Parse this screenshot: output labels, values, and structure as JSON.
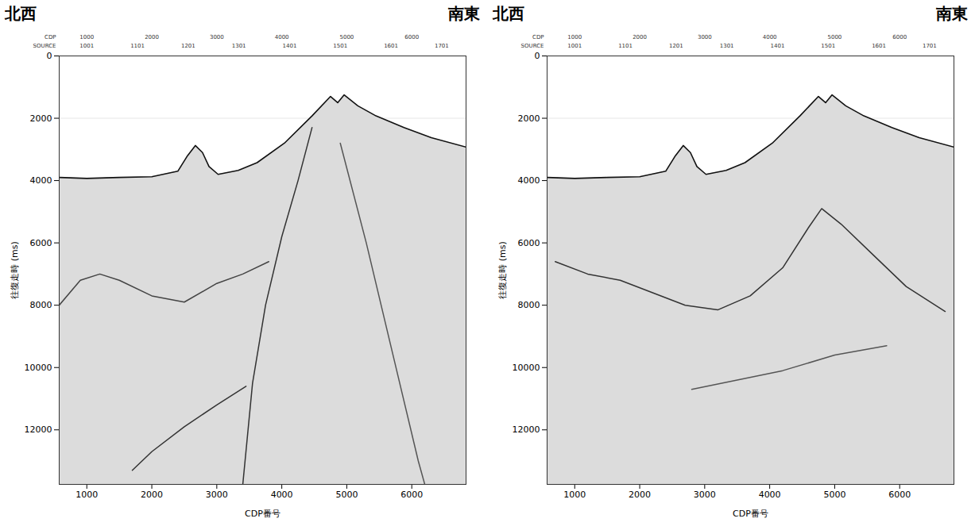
{
  "chart_data": [
    {
      "type": "line",
      "annotations": [
        "北西",
        "南東"
      ],
      "x_label": "CDP番号",
      "y_label": "往復走時 (ms)",
      "xlim": [
        575,
        6835
      ],
      "ylim": [
        0,
        13750
      ],
      "xticks": [
        1000,
        2000,
        3000,
        4000,
        5000,
        6000
      ],
      "yticks": [
        0,
        2000,
        4000,
        6000,
        8000,
        10000,
        12000
      ],
      "grid": true,
      "top_rows": [
        {
          "label": "CDP",
          "ticks": [
            1000,
            2000,
            3000,
            4000,
            5000,
            6000
          ]
        },
        {
          "label": "SOURCE",
          "ticks": [
            {
              "value": 1000,
              "label": "1001"
            },
            {
              "value": 1780,
              "label": "1101"
            },
            {
              "value": 2560,
              "label": "1201"
            },
            {
              "value": 3340,
              "label": "1301"
            },
            {
              "value": 4120,
              "label": "1401"
            },
            {
              "value": 4900,
              "label": "1501"
            },
            {
              "value": 5680,
              "label": "1601"
            },
            {
              "value": 6460,
              "label": "1701"
            }
          ]
        }
      ],
      "series": [
        {
          "type": "area",
          "color": "#dcdcdc",
          "x": [
            575,
            1000,
            1500,
            2000,
            2400,
            2550,
            2670,
            2780,
            2880,
            3020,
            3330,
            3620,
            4040,
            4465,
            4750,
            4860,
            4960,
            5170,
            5450,
            5880,
            6300,
            6835
          ],
          "values": [
            3900,
            3930,
            3900,
            3875,
            3700,
            3200,
            2875,
            3100,
            3550,
            3800,
            3675,
            3425,
            2800,
            1925,
            1300,
            1500,
            1250,
            1600,
            1925,
            2300,
            2625,
            2925
          ]
        },
        {
          "type": "line",
          "color": "#333333",
          "x": [
            4465,
            4250,
            4000,
            3750,
            3550,
            3400
          ],
          "values": [
            2300,
            4000,
            5800,
            8000,
            10500,
            13750
          ]
        },
        {
          "type": "line",
          "color": "#333333",
          "x": [
            3450,
            3000,
            2500,
            2000,
            1700
          ],
          "values": [
            10600,
            11200,
            11900,
            12700,
            13300
          ]
        },
        {
          "type": "line",
          "color": "#555555",
          "x": [
            4900,
            5300,
            5700,
            6100,
            6200
          ],
          "values": [
            2800,
            6000,
            9500,
            13000,
            13750
          ]
        },
        {
          "type": "line",
          "color": "#444444",
          "x": [
            575,
            900,
            1200,
            1500,
            2000,
            2500,
            3000,
            3400,
            3800
          ],
          "values": [
            8000,
            7200,
            7000,
            7200,
            7700,
            7900,
            7300,
            7000,
            6600
          ]
        }
      ]
    },
    {
      "type": "line",
      "annotations": [
        "北西",
        "南東"
      ],
      "x_label": "CDP番号",
      "y_label": "往復走時 (ms)",
      "xlim": [
        575,
        6835
      ],
      "ylim": [
        0,
        13750
      ],
      "xticks": [
        1000,
        2000,
        3000,
        4000,
        5000,
        6000
      ],
      "yticks": [
        0,
        2000,
        4000,
        6000,
        8000,
        10000,
        12000
      ],
      "grid": true,
      "top_rows": [
        {
          "label": "CDP",
          "ticks": [
            1000,
            2000,
            3000,
            4000,
            5000,
            6000
          ]
        },
        {
          "label": "SOURCE",
          "ticks": [
            {
              "value": 1000,
              "label": "1001"
            },
            {
              "value": 1780,
              "label": "1101"
            },
            {
              "value": 2560,
              "label": "1201"
            },
            {
              "value": 3340,
              "label": "1301"
            },
            {
              "value": 4120,
              "label": "1401"
            },
            {
              "value": 4900,
              "label": "1501"
            },
            {
              "value": 5680,
              "label": "1601"
            },
            {
              "value": 6460,
              "label": "1701"
            }
          ]
        }
      ],
      "series": [
        {
          "type": "area",
          "color": "#dcdcdc",
          "x": [
            575,
            1000,
            1500,
            2000,
            2400,
            2550,
            2670,
            2780,
            2880,
            3020,
            3330,
            3620,
            4040,
            4465,
            4750,
            4860,
            4960,
            5170,
            5450,
            5880,
            6300,
            6835
          ],
          "values": [
            3900,
            3930,
            3900,
            3875,
            3700,
            3200,
            2875,
            3100,
            3550,
            3800,
            3675,
            3425,
            2800,
            1925,
            1300,
            1500,
            1250,
            1600,
            1925,
            2300,
            2625,
            2925
          ]
        },
        {
          "type": "line",
          "color": "#333333",
          "x": [
            700,
            1200,
            1700,
            2200,
            2700,
            3200,
            3700,
            4200,
            4600,
            4800,
            5100,
            5600,
            6100,
            6700
          ],
          "values": [
            6600,
            7000,
            7200,
            7600,
            8000,
            8150,
            7700,
            6800,
            5500,
            4900,
            5400,
            6400,
            7400,
            8200
          ]
        },
        {
          "type": "line",
          "color": "#555555",
          "x": [
            2800,
            3500,
            4200,
            5000,
            5800
          ],
          "values": [
            10700,
            10400,
            10100,
            9600,
            9300
          ]
        }
      ]
    }
  ]
}
